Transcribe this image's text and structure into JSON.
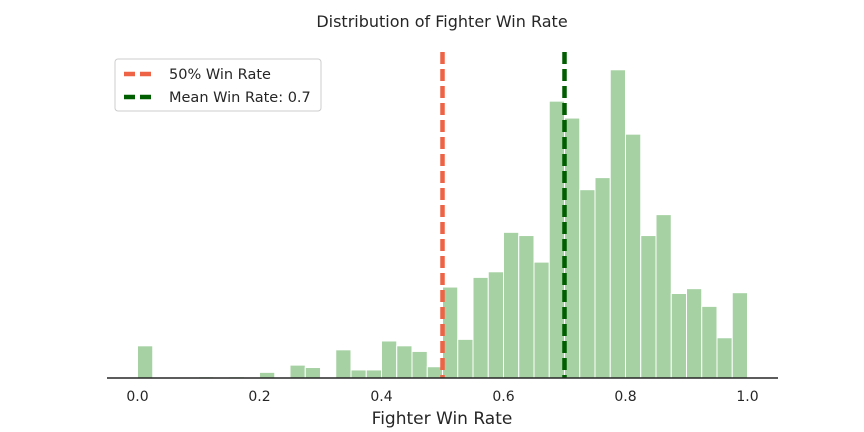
{
  "chart_data": {
    "type": "bar",
    "title": "Distribution of Fighter Win Rate",
    "xlabel": "Fighter Win Rate",
    "ylabel": "",
    "xlim": [
      -0.05,
      1.05
    ],
    "ylim": [
      0,
      42
    ],
    "bin_width": 0.025,
    "bar_color": "#a5d1a3",
    "bins": [
      {
        "x0": 0.0,
        "count": 4
      },
      {
        "x0": 0.1,
        "count": 0.15
      },
      {
        "x0": 0.15,
        "count": 0.15
      },
      {
        "x0": 0.2,
        "count": 0.7
      },
      {
        "x0": 0.25,
        "count": 1.6
      },
      {
        "x0": 0.275,
        "count": 1.3
      },
      {
        "x0": 0.325,
        "count": 3.5
      },
      {
        "x0": 0.35,
        "count": 1
      },
      {
        "x0": 0.375,
        "count": 1
      },
      {
        "x0": 0.4,
        "count": 4.6
      },
      {
        "x0": 0.425,
        "count": 4
      },
      {
        "x0": 0.45,
        "count": 3.3
      },
      {
        "x0": 0.475,
        "count": 1.4
      },
      {
        "x0": 0.5,
        "count": 11.3
      },
      {
        "x0": 0.525,
        "count": 4.8
      },
      {
        "x0": 0.55,
        "count": 12.5
      },
      {
        "x0": 0.575,
        "count": 13.2
      },
      {
        "x0": 0.6,
        "count": 18.1
      },
      {
        "x0": 0.625,
        "count": 17.7
      },
      {
        "x0": 0.65,
        "count": 14.4
      },
      {
        "x0": 0.675,
        "count": 34.4
      },
      {
        "x0": 0.7,
        "count": 32.3
      },
      {
        "x0": 0.725,
        "count": 23.4
      },
      {
        "x0": 0.75,
        "count": 24.9
      },
      {
        "x0": 0.775,
        "count": 38.3
      },
      {
        "x0": 0.8,
        "count": 30.3
      },
      {
        "x0": 0.825,
        "count": 17.7
      },
      {
        "x0": 0.85,
        "count": 20.3
      },
      {
        "x0": 0.875,
        "count": 10.5
      },
      {
        "x0": 0.9,
        "count": 11.1
      },
      {
        "x0": 0.925,
        "count": 8.9
      },
      {
        "x0": 0.95,
        "count": 5
      },
      {
        "x0": 0.975,
        "count": 0.6
      },
      {
        "x0": 0.975,
        "count": 0
      },
      {
        "x0": 0.975,
        "count": 10.6
      }
    ],
    "xticks": [
      "0.0",
      "0.2",
      "0.4",
      "0.6",
      "0.8",
      "1.0"
    ],
    "xtick_values": [
      0.0,
      0.2,
      0.4,
      0.6,
      0.8,
      1.0
    ],
    "vlines": [
      {
        "x": 0.5,
        "color": "#ee6245",
        "label": "50% Win Rate"
      },
      {
        "x": 0.7,
        "color": "#005e00",
        "label": "Mean Win Rate: 0.7"
      }
    ],
    "legend_position": "top-left",
    "grid": false
  }
}
